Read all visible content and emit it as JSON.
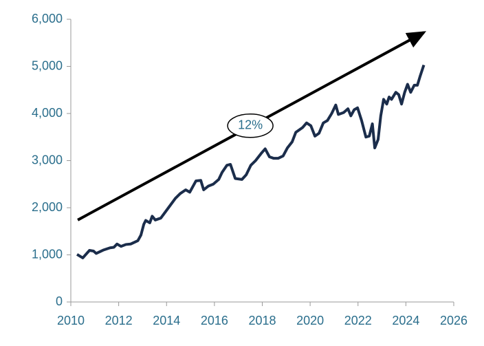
{
  "chart_data": {
    "type": "line",
    "x": [
      2010.26,
      2010.5,
      2010.78,
      2010.95,
      2011.06,
      2011.35,
      2011.64,
      2011.8,
      2011.93,
      2012.1,
      2012.3,
      2012.5,
      2012.8,
      2012.93,
      2013.05,
      2013.13,
      2013.3,
      2013.4,
      2013.53,
      2013.76,
      2014.08,
      2014.37,
      2014.57,
      2014.8,
      2014.97,
      2015.23,
      2015.43,
      2015.55,
      2015.75,
      2015.95,
      2016.18,
      2016.32,
      2016.52,
      2016.67,
      2016.87,
      2017.15,
      2017.33,
      2017.52,
      2017.72,
      2017.95,
      2018.12,
      2018.3,
      2018.47,
      2018.67,
      2018.87,
      2019.05,
      2019.25,
      2019.4,
      2019.68,
      2019.85,
      2020.03,
      2020.2,
      2020.37,
      2020.55,
      2020.72,
      2020.9,
      2021.07,
      2021.18,
      2021.4,
      2021.58,
      2021.7,
      2021.84,
      2021.98,
      2022.15,
      2022.33,
      2022.47,
      2022.6,
      2022.7,
      2022.84,
      2022.95,
      2023.07,
      2023.2,
      2023.3,
      2023.4,
      2023.58,
      2023.7,
      2023.82,
      2023.95,
      2024.07,
      2024.2,
      2024.35,
      2024.48,
      2024.6,
      2024.75
    ],
    "series": [
      {
        "color": "#1b2d4b",
        "values": [
          1010,
          935,
          1095,
          1080,
          1030,
          1100,
          1150,
          1160,
          1230,
          1180,
          1220,
          1230,
          1300,
          1420,
          1650,
          1730,
          1680,
          1820,
          1740,
          1780,
          2000,
          2200,
          2300,
          2380,
          2330,
          2570,
          2580,
          2380,
          2460,
          2500,
          2600,
          2750,
          2900,
          2920,
          2620,
          2600,
          2700,
          2900,
          3000,
          3150,
          3250,
          3080,
          3050,
          3050,
          3100,
          3270,
          3400,
          3600,
          3700,
          3800,
          3740,
          3520,
          3580,
          3800,
          3850,
          4000,
          4180,
          3980,
          4020,
          4100,
          3950,
          4080,
          4120,
          3850,
          3500,
          3520,
          3780,
          3270,
          3450,
          3950,
          4300,
          4200,
          4350,
          4300,
          4450,
          4400,
          4200,
          4450,
          4620,
          4450,
          4600,
          4600,
          4800,
          5030
        ]
      }
    ],
    "xlim": [
      2010,
      2026
    ],
    "xticks": [
      2010,
      2012,
      2014,
      2016,
      2018,
      2020,
      2022,
      2024,
      2026
    ],
    "ylim": [
      0,
      6000
    ],
    "yticks": [
      0,
      {
        "value": 1000,
        "label": "1,000"
      },
      {
        "value": 2000,
        "label": "2,000"
      },
      {
        "value": 3000,
        "label": "3,000"
      },
      {
        "value": 4000,
        "label": "4,000"
      },
      {
        "value": 5000,
        "label": "5,000"
      },
      {
        "value": 6000,
        "label": "6,000"
      }
    ],
    "trend": {
      "label": "12%",
      "x": [
        2010.29,
        2024.75
      ],
      "y": [
        1740,
        5720
      ],
      "label_x": 2017.5,
      "label_y": 3740
    }
  }
}
